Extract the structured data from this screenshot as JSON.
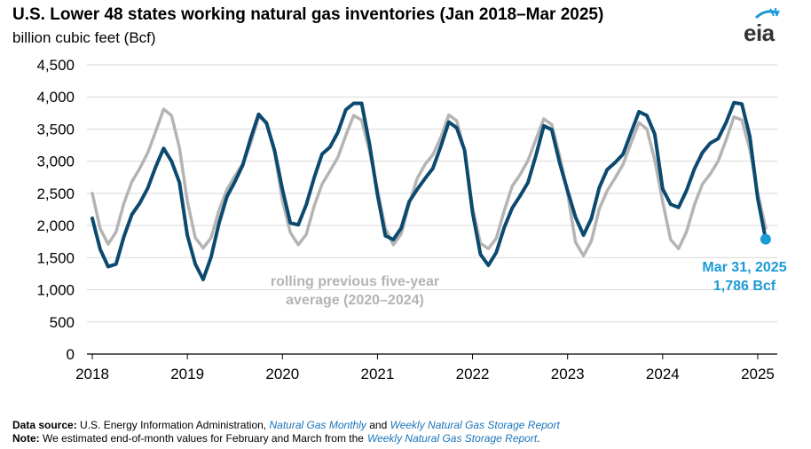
{
  "header": {
    "title": "U.S. Lower 48 states working natural gas inventories (Jan 2018–Mar 2025)",
    "subtitle": "billion cubic feet (Bcf)",
    "logo_text": "eia"
  },
  "chart_data": {
    "type": "line",
    "ylim": [
      0,
      4500
    ],
    "y_ticks": [
      0,
      500,
      1000,
      1500,
      2000,
      2500,
      3000,
      3500,
      4000,
      4500
    ],
    "y_tick_labels": [
      "0",
      "500",
      "1,000",
      "1,500",
      "2,000",
      "2,500",
      "3,000",
      "3,500",
      "4,000",
      "4,500"
    ],
    "x_ticks": [
      "2018",
      "2019",
      "2020",
      "2021",
      "2022",
      "2023",
      "2024",
      "2025"
    ],
    "grid": true,
    "colors": {
      "actual": "#0b4a6e",
      "average": "#b4b4b4",
      "callout": "#1b9ad6"
    },
    "series": [
      {
        "key": "actual",
        "values": [
          2110,
          1630,
          1360,
          1400,
          1830,
          2170,
          2350,
          2580,
          2910,
          3200,
          3000,
          2670,
          1850,
          1400,
          1160,
          1510,
          2040,
          2450,
          2680,
          2940,
          3360,
          3730,
          3590,
          3170,
          2560,
          2040,
          2010,
          2320,
          2740,
          3110,
          3220,
          3450,
          3800,
          3900,
          3900,
          3260,
          2480,
          1840,
          1780,
          1960,
          2370,
          2560,
          2730,
          2890,
          3230,
          3610,
          3520,
          3170,
          2200,
          1550,
          1380,
          1580,
          1970,
          2270,
          2460,
          2670,
          3090,
          3550,
          3490,
          2970,
          2540,
          2130,
          1850,
          2110,
          2590,
          2870,
          2980,
          3110,
          3440,
          3770,
          3710,
          3420,
          2570,
          2330,
          2280,
          2540,
          2880,
          3130,
          3280,
          3350,
          3600,
          3910,
          3890,
          3380,
          2420,
          1786
        ]
      },
      {
        "key": "average",
        "values": [
          2500,
          1950,
          1710,
          1900,
          2350,
          2680,
          2890,
          3130,
          3460,
          3810,
          3710,
          3210,
          2380,
          1810,
          1650,
          1810,
          2240,
          2560,
          2770,
          2960,
          3280,
          3690,
          3610,
          3140,
          2390,
          1890,
          1700,
          1860,
          2300,
          2640,
          2850,
          3060,
          3400,
          3710,
          3640,
          3150,
          2560,
          1950,
          1700,
          1870,
          2330,
          2730,
          2950,
          3100,
          3370,
          3720,
          3630,
          3160,
          2270,
          1720,
          1640,
          1800,
          2230,
          2610,
          2790,
          3010,
          3340,
          3660,
          3570,
          3080,
          2500,
          1740,
          1530,
          1760,
          2260,
          2540,
          2740,
          2950,
          3280,
          3600,
          3500,
          3020,
          2370,
          1780,
          1640,
          1900,
          2320,
          2640,
          2800,
          3000,
          3330,
          3690,
          3640,
          3180,
          2500,
          1960
        ]
      }
    ],
    "annotations": {
      "average_label_line1": "rolling previous five-year",
      "average_label_line2": "average (2020–2024)",
      "callout_line1": "Mar 31, 2025",
      "callout_line2": "1,786 Bcf"
    }
  },
  "footer": {
    "source_label": "Data source:",
    "source_text_1": "U.S. Energy Information Administration,",
    "source_link_1": "Natural Gas Monthly",
    "source_text_2": "and",
    "source_link_2": "Weekly Natural Gas Storage Report",
    "note_label": "Note:",
    "note_text": "We estimated end-of-month values for February and March from the",
    "note_link": "Weekly Natural Gas Storage Report",
    "note_end": "."
  }
}
